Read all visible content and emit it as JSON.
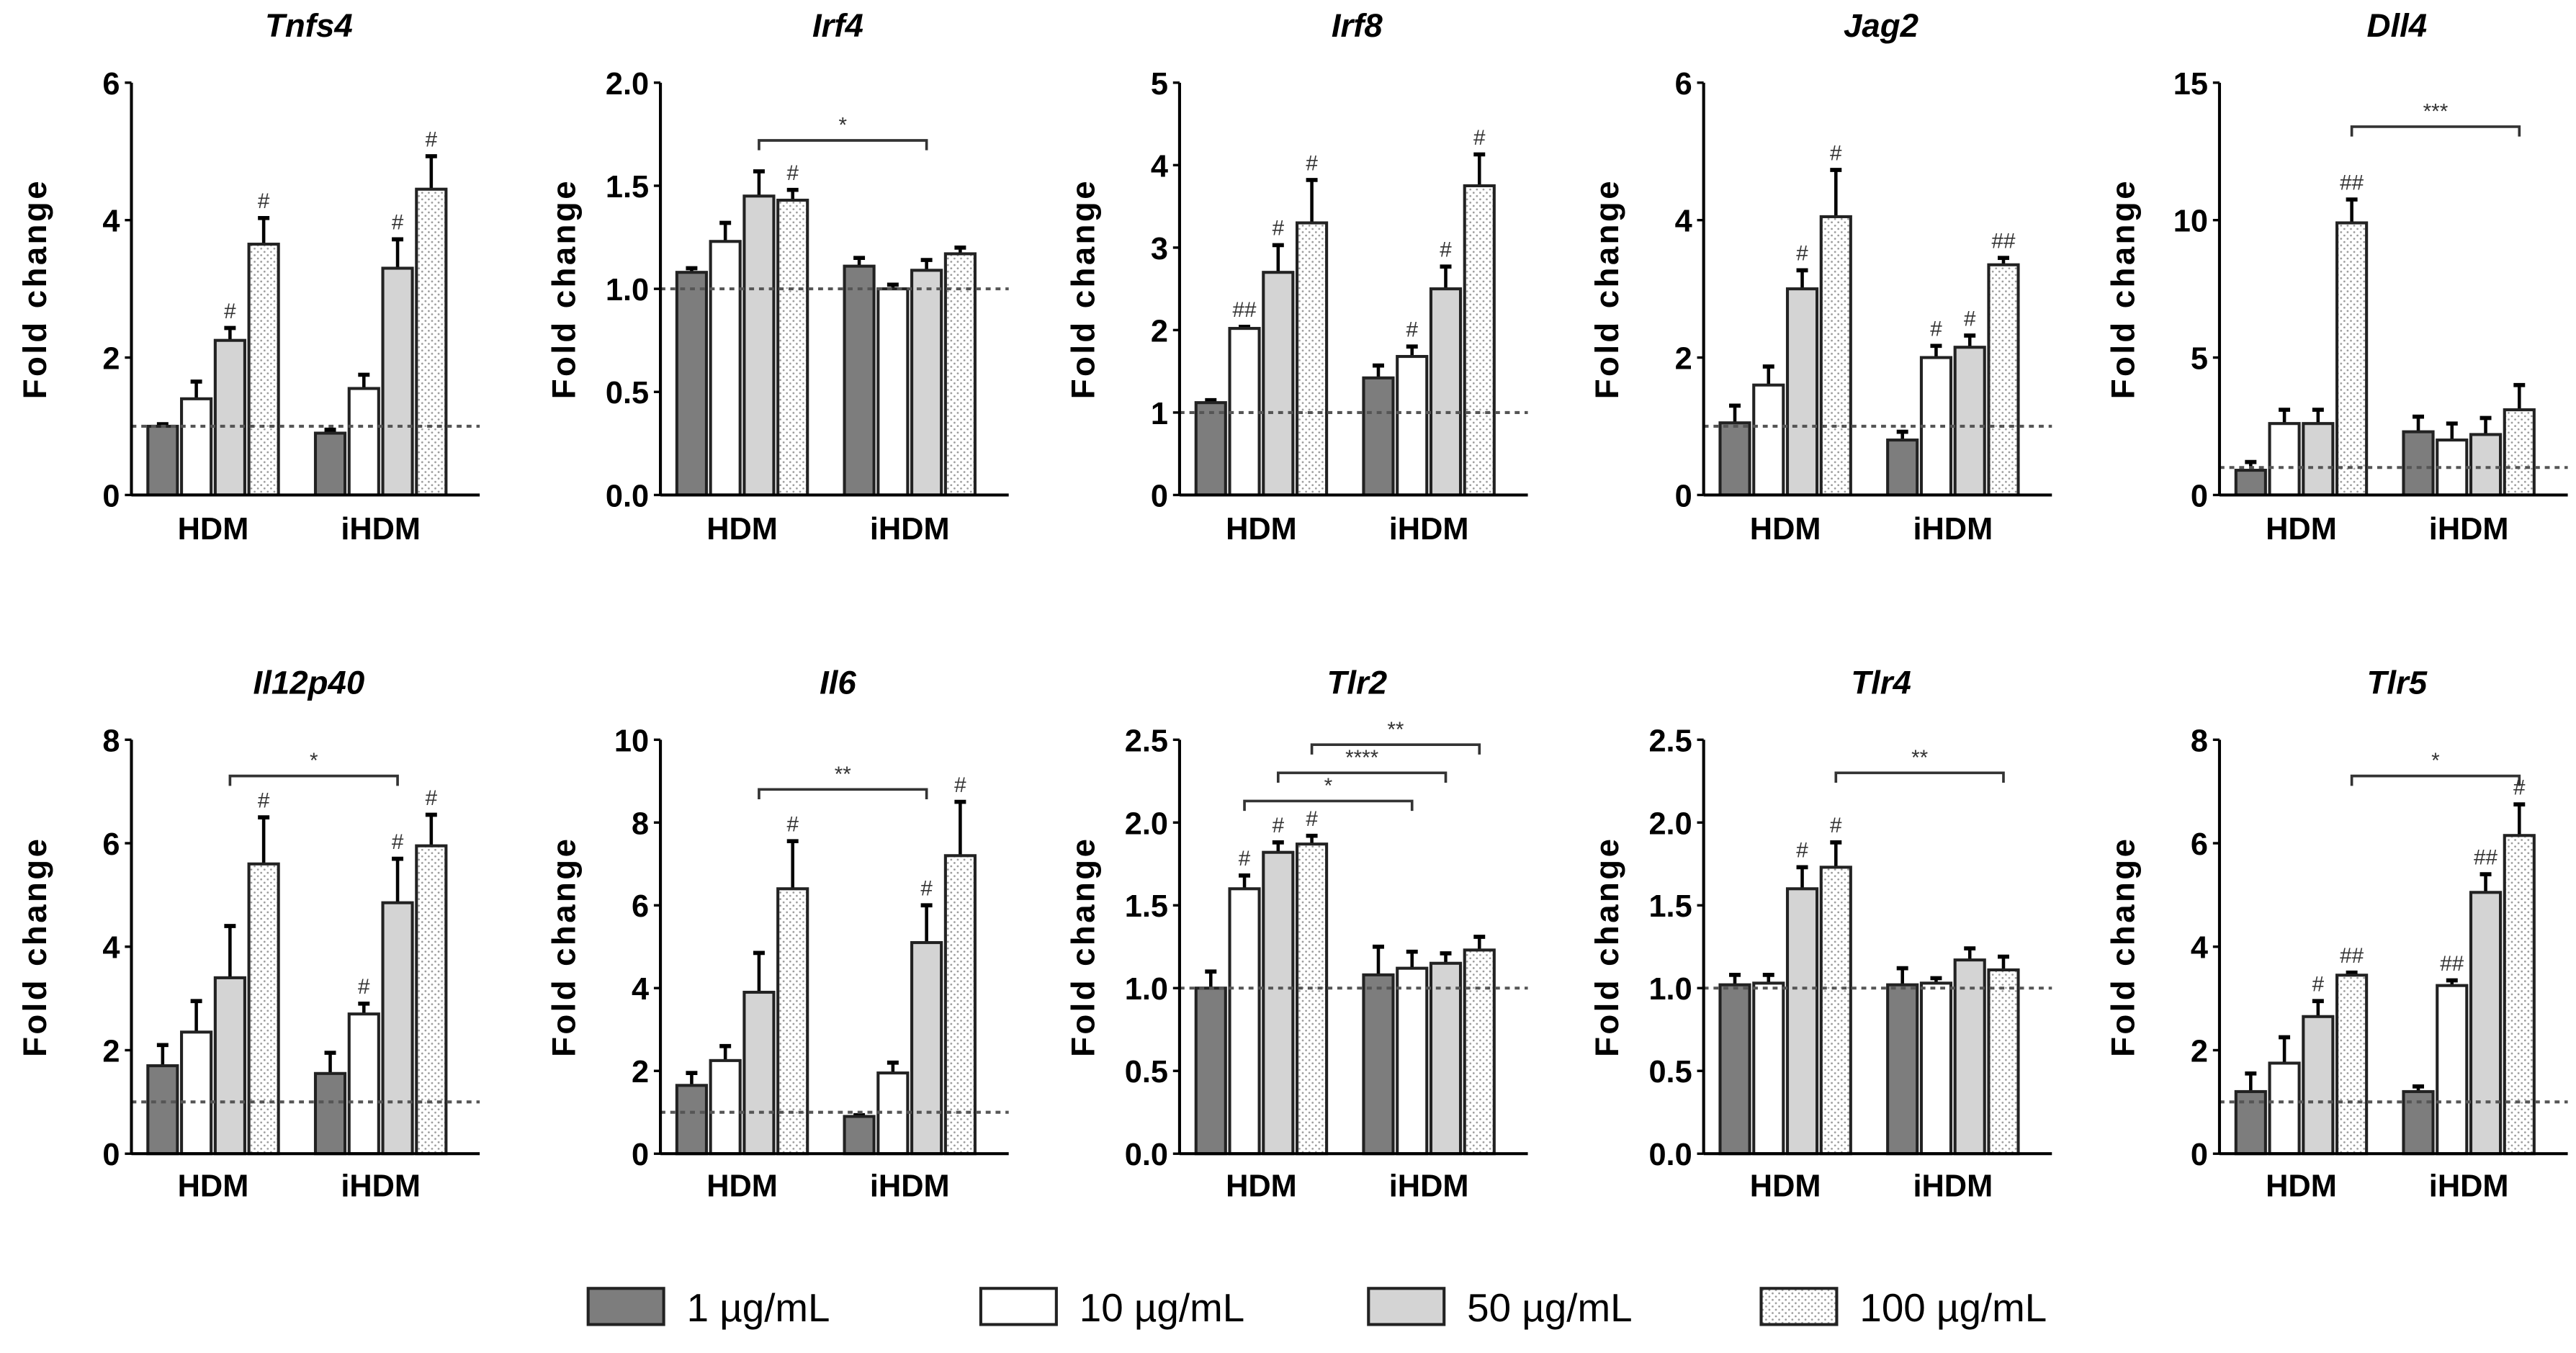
{
  "chart_data": {
    "type": "bar",
    "ylabel": "Fold change",
    "categories": [
      "HDM",
      "iHDM"
    ],
    "series_names": [
      "1 µg/mL",
      "10 µg/mL",
      "50 µg/mL",
      "100 µg/mL"
    ],
    "colors": {
      "s0": "#7d7d7d",
      "s1": "#ffffff",
      "s2": "#d4d4d4",
      "s3_dots": "#9a9a9a",
      "axis": "#000000",
      "baseline": "#555555"
    },
    "baseline": 1,
    "panels": [
      {
        "title": "Tnfs4",
        "ylim": [
          0,
          6
        ],
        "ticks": [
          "0",
          "2",
          "4",
          "6"
        ],
        "tickvals": [
          0,
          2,
          4,
          6
        ],
        "values": [
          [
            1.0,
            1.4,
            2.25,
            3.65
          ],
          [
            0.9,
            1.55,
            3.3,
            4.45
          ]
        ],
        "errors": [
          [
            0.03,
            0.25,
            0.18,
            0.38
          ],
          [
            0.05,
            0.2,
            0.42,
            0.48
          ]
        ],
        "sig": [
          [
            "",
            "",
            "#",
            "#"
          ],
          [
            "",
            "",
            "#",
            "#"
          ]
        ],
        "brackets": []
      },
      {
        "title": "Irf4",
        "ylim": [
          0,
          2
        ],
        "ticks": [
          "0.0",
          "0.5",
          "1.0",
          "1.5",
          "2.0"
        ],
        "tickvals": [
          0,
          0.5,
          1,
          1.5,
          2
        ],
        "values": [
          [
            1.08,
            1.23,
            1.45,
            1.43
          ],
          [
            1.11,
            1.0,
            1.09,
            1.17
          ]
        ],
        "errors": [
          [
            0.02,
            0.09,
            0.12,
            0.05
          ],
          [
            0.04,
            0.02,
            0.05,
            0.03
          ]
        ],
        "sig": [
          [
            "",
            "",
            "",
            "#"
          ],
          [
            "",
            "",
            "",
            ""
          ]
        ],
        "brackets": [
          {
            "from": [
              0,
              2
            ],
            "to": [
              1,
              2
            ],
            "label": "*",
            "y": 1.72
          }
        ]
      },
      {
        "title": "Irf8",
        "ylim": [
          0,
          5
        ],
        "ticks": [
          "0",
          "1",
          "2",
          "3",
          "4",
          "5"
        ],
        "tickvals": [
          0,
          1,
          2,
          3,
          4,
          5
        ],
        "values": [
          [
            1.12,
            2.02,
            2.7,
            3.3
          ],
          [
            1.42,
            1.68,
            2.5,
            3.75
          ]
        ],
        "errors": [
          [
            0.03,
            0.02,
            0.33,
            0.52
          ],
          [
            0.15,
            0.12,
            0.27,
            0.38
          ]
        ],
        "sig": [
          [
            "",
            "##",
            "#",
            "#"
          ],
          [
            "",
            "#",
            "#",
            "#"
          ]
        ],
        "brackets": []
      },
      {
        "title": "Jag2",
        "ylim": [
          0,
          6
        ],
        "ticks": [
          "0",
          "2",
          "4",
          "6"
        ],
        "tickvals": [
          0,
          2,
          4,
          6
        ],
        "values": [
          [
            1.05,
            1.6,
            3.0,
            4.05
          ],
          [
            0.8,
            2.0,
            2.15,
            3.35
          ]
        ],
        "errors": [
          [
            0.25,
            0.27,
            0.27,
            0.68
          ],
          [
            0.12,
            0.17,
            0.17,
            0.1
          ]
        ],
        "sig": [
          [
            "",
            "",
            "#",
            "#"
          ],
          [
            "",
            "#",
            "#",
            "##"
          ]
        ],
        "brackets": []
      },
      {
        "title": "Dll4",
        "ylim": [
          0,
          15
        ],
        "ticks": [
          "0",
          "5",
          "10",
          "15"
        ],
        "tickvals": [
          0,
          5,
          10,
          15
        ],
        "values": [
          [
            0.9,
            2.6,
            2.6,
            9.9
          ],
          [
            2.3,
            2.0,
            2.2,
            3.1
          ]
        ],
        "errors": [
          [
            0.3,
            0.5,
            0.5,
            0.85
          ],
          [
            0.55,
            0.6,
            0.6,
            0.9
          ]
        ],
        "sig": [
          [
            "",
            "",
            "",
            "##"
          ],
          [
            "",
            "",
            "",
            ""
          ]
        ],
        "brackets": [
          {
            "from": [
              0,
              3
            ],
            "to": [
              1,
              3
            ],
            "label": "***",
            "y": 13.4
          }
        ]
      },
      {
        "title": "Il12p40",
        "ylim": [
          0,
          8
        ],
        "ticks": [
          "0",
          "2",
          "4",
          "6",
          "8"
        ],
        "tickvals": [
          0,
          2,
          4,
          6,
          8
        ],
        "values": [
          [
            1.7,
            2.35,
            3.4,
            5.6
          ],
          [
            1.55,
            2.7,
            4.85,
            5.95
          ]
        ],
        "errors": [
          [
            0.4,
            0.6,
            1.0,
            0.9
          ],
          [
            0.4,
            0.2,
            0.85,
            0.6
          ]
        ],
        "sig": [
          [
            "",
            "",
            "",
            "#"
          ],
          [
            "",
            "#",
            "#",
            "#"
          ]
        ],
        "brackets": [
          {
            "from": [
              0,
              2
            ],
            "to": [
              1,
              2
            ],
            "label": "*",
            "y": 7.3
          }
        ]
      },
      {
        "title": "Il6",
        "ylim": [
          0,
          10
        ],
        "ticks": [
          "0",
          "2",
          "4",
          "6",
          "8",
          "10"
        ],
        "tickvals": [
          0,
          2,
          4,
          6,
          8,
          10
        ],
        "values": [
          [
            1.65,
            2.25,
            3.9,
            6.4
          ],
          [
            0.9,
            1.95,
            5.1,
            7.2
          ]
        ],
        "errors": [
          [
            0.3,
            0.35,
            0.95,
            1.15
          ],
          [
            0.03,
            0.25,
            0.9,
            1.3
          ]
        ],
        "sig": [
          [
            "",
            "",
            "",
            "#"
          ],
          [
            "",
            "",
            "#",
            "#"
          ]
        ],
        "brackets": [
          {
            "from": [
              0,
              2
            ],
            "to": [
              1,
              2
            ],
            "label": "**",
            "y": 8.8
          }
        ]
      },
      {
        "title": "Tlr2",
        "ylim": [
          0,
          2.5
        ],
        "ticks": [
          "0.0",
          "0.5",
          "1.0",
          "1.5",
          "2.0",
          "2.5"
        ],
        "tickvals": [
          0,
          0.5,
          1,
          1.5,
          2,
          2.5
        ],
        "values": [
          [
            1.0,
            1.6,
            1.82,
            1.87
          ],
          [
            1.08,
            1.12,
            1.15,
            1.23
          ]
        ],
        "errors": [
          [
            0.1,
            0.08,
            0.06,
            0.05
          ],
          [
            0.17,
            0.1,
            0.06,
            0.08
          ]
        ],
        "sig": [
          [
            "",
            "#",
            "#",
            "#"
          ],
          [
            "",
            "",
            "",
            ""
          ]
        ],
        "brackets": [
          {
            "from": [
              0,
              1
            ],
            "to": [
              1,
              1
            ],
            "label": "*",
            "y": 2.13
          },
          {
            "from": [
              0,
              2
            ],
            "to": [
              1,
              2
            ],
            "label": "****",
            "y": 2.3
          },
          {
            "from": [
              0,
              3
            ],
            "to": [
              1,
              3
            ],
            "label": "**",
            "y": 2.47
          }
        ]
      },
      {
        "title": "Tlr4",
        "ylim": [
          0,
          2.5
        ],
        "ticks": [
          "0.0",
          "0.5",
          "1.0",
          "1.5",
          "2.0",
          "2.5"
        ],
        "tickvals": [
          0,
          0.5,
          1,
          1.5,
          2,
          2.5
        ],
        "values": [
          [
            1.02,
            1.03,
            1.6,
            1.73
          ],
          [
            1.02,
            1.03,
            1.17,
            1.11
          ]
        ],
        "errors": [
          [
            0.06,
            0.05,
            0.13,
            0.15
          ],
          [
            0.1,
            0.03,
            0.07,
            0.08
          ]
        ],
        "sig": [
          [
            "",
            "",
            "#",
            "#"
          ],
          [
            "",
            "",
            "",
            ""
          ]
        ],
        "brackets": [
          {
            "from": [
              0,
              3
            ],
            "to": [
              1,
              3
            ],
            "label": "**",
            "y": 2.3
          }
        ]
      },
      {
        "title": "Tlr5",
        "ylim": [
          0,
          8
        ],
        "ticks": [
          "0",
          "2",
          "4",
          "6",
          "8"
        ],
        "tickvals": [
          0,
          2,
          4,
          6,
          8
        ],
        "values": [
          [
            1.2,
            1.75,
            2.65,
            3.45
          ],
          [
            1.2,
            3.25,
            5.05,
            6.15
          ]
        ],
        "errors": [
          [
            0.35,
            0.5,
            0.3,
            0.05
          ],
          [
            0.1,
            0.1,
            0.35,
            0.6
          ]
        ],
        "sig": [
          [
            "",
            "",
            "#",
            "##"
          ],
          [
            "",
            "##",
            "##",
            "#"
          ]
        ],
        "brackets": [
          {
            "from": [
              0,
              3
            ],
            "to": [
              1,
              3
            ],
            "label": "*",
            "y": 7.3
          }
        ]
      }
    ],
    "legend": {
      "position": "bottom",
      "entries": [
        "1 µg/mL",
        "10 µg/mL",
        "50 µg/mL",
        "100 µg/mL"
      ]
    }
  }
}
